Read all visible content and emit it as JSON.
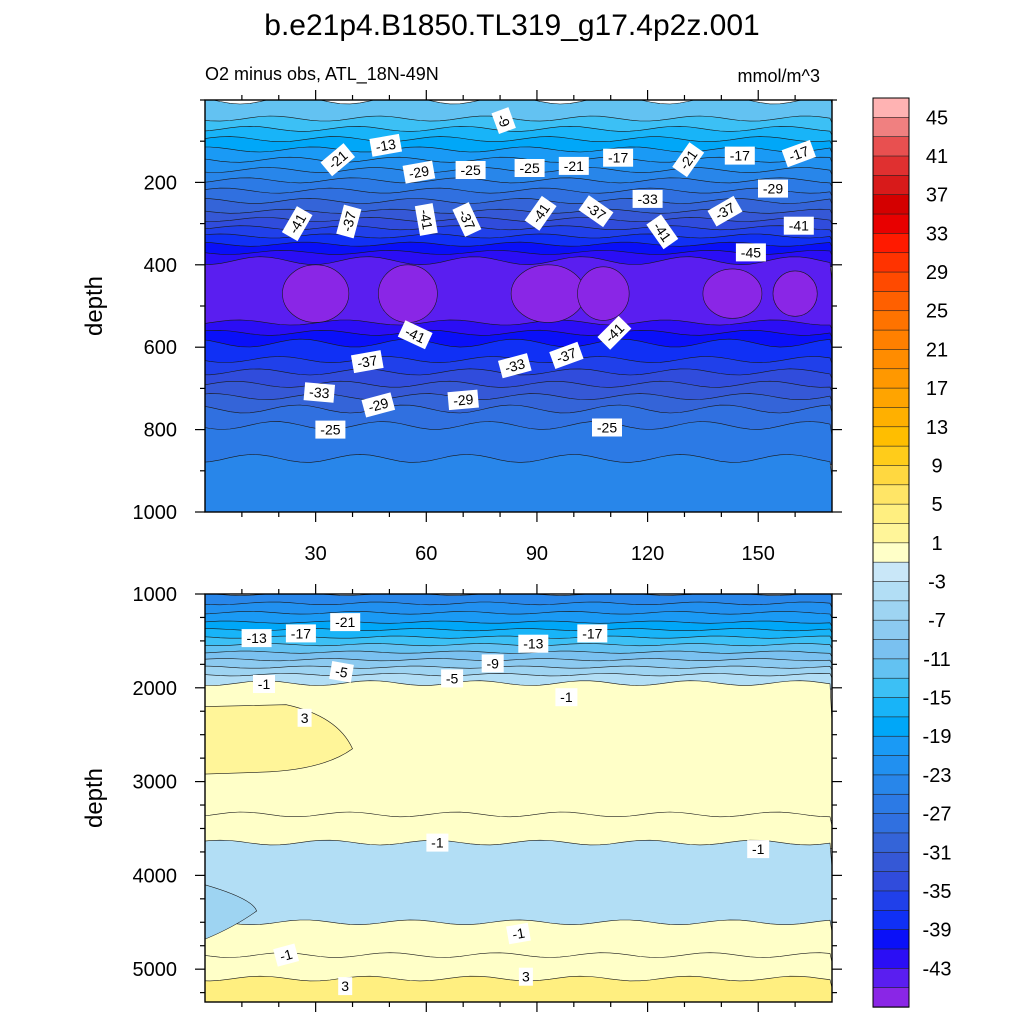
{
  "chart_data": {
    "type": "contour",
    "title": "b.e21p4.B1850.TL319_g17.4p2z.001",
    "subtitle_left": "O2 minus obs, ATL_18N-49N",
    "subtitle_right": "mmol/m^3",
    "panels": [
      {
        "name": "upper",
        "ylabel": "depth",
        "ylim": [
          0,
          1000
        ],
        "yticks": [
          200,
          400,
          600,
          800,
          1000
        ],
        "xlim": [
          0,
          170
        ],
        "xticks": [
          30,
          60,
          90,
          120,
          150
        ],
        "bands": [
          {
            "top": 0,
            "bottom": 45,
            "value": -11
          },
          {
            "top": 45,
            "bottom": 70,
            "value": -13
          },
          {
            "top": 70,
            "bottom": 95,
            "value": -15
          },
          {
            "top": 95,
            "bottom": 120,
            "value": -17
          },
          {
            "top": 120,
            "bottom": 145,
            "value": -19
          },
          {
            "top": 145,
            "bottom": 170,
            "value": -21
          },
          {
            "top": 170,
            "bottom": 195,
            "value": -23
          },
          {
            "top": 195,
            "bottom": 220,
            "value": -25
          },
          {
            "top": 220,
            "bottom": 245,
            "value": -27
          },
          {
            "top": 245,
            "bottom": 270,
            "value": -29
          },
          {
            "top": 270,
            "bottom": 290,
            "value": -31
          },
          {
            "top": 290,
            "bottom": 310,
            "value": -33
          },
          {
            "top": 310,
            "bottom": 330,
            "value": -35
          },
          {
            "top": 330,
            "bottom": 350,
            "value": -37
          },
          {
            "top": 350,
            "bottom": 370,
            "value": -39
          },
          {
            "top": 370,
            "bottom": 390,
            "value": -41
          },
          {
            "top": 390,
            "bottom": 540,
            "value": -43
          },
          {
            "top": 540,
            "bottom": 565,
            "value": -41
          },
          {
            "top": 565,
            "bottom": 590,
            "value": -39
          },
          {
            "top": 590,
            "bottom": 630,
            "value": -37
          },
          {
            "top": 630,
            "bottom": 660,
            "value": -35
          },
          {
            "top": 660,
            "bottom": 690,
            "value": -33
          },
          {
            "top": 690,
            "bottom": 720,
            "value": -31
          },
          {
            "top": 720,
            "bottom": 750,
            "value": -29
          },
          {
            "top": 750,
            "bottom": 790,
            "value": -27
          },
          {
            "top": 790,
            "bottom": 870,
            "value": -25
          },
          {
            "top": 870,
            "bottom": 1000,
            "value": -23
          }
        ],
        "blobs": [
          {
            "x": 30,
            "y": 470,
            "rx": 9,
            "ry": 70,
            "value": -45
          },
          {
            "x": 55,
            "y": 470,
            "rx": 8,
            "ry": 70,
            "value": -45
          },
          {
            "x": 93,
            "y": 470,
            "rx": 10,
            "ry": 70,
            "value": -45
          },
          {
            "x": 108,
            "y": 470,
            "rx": 7,
            "ry": 65,
            "value": -45
          },
          {
            "x": 143,
            "y": 470,
            "rx": 8,
            "ry": 60,
            "value": -45
          },
          {
            "x": 160,
            "y": 470,
            "rx": 6,
            "ry": 55,
            "value": -45
          }
        ],
        "labels": [
          {
            "text": "-9",
            "x": 81,
            "y": 50,
            "rot": 70
          },
          {
            "text": "-13",
            "x": 49,
            "y": 110,
            "rot": -10
          },
          {
            "text": "-21",
            "x": 36,
            "y": 145,
            "rot": -40
          },
          {
            "text": "-29",
            "x": 58,
            "y": 175,
            "rot": -10
          },
          {
            "text": "-25",
            "x": 72,
            "y": 170,
            "rot": 0
          },
          {
            "text": "-25",
            "x": 88,
            "y": 165,
            "rot": 0
          },
          {
            "text": "-21",
            "x": 100,
            "y": 160,
            "rot": 0
          },
          {
            "text": "-17",
            "x": 112,
            "y": 140,
            "rot": 0
          },
          {
            "text": "-21",
            "x": 131,
            "y": 145,
            "rot": -55
          },
          {
            "text": "-17",
            "x": 145,
            "y": 135,
            "rot": 0
          },
          {
            "text": "-17",
            "x": 161,
            "y": 130,
            "rot": -20
          },
          {
            "text": "-29",
            "x": 154,
            "y": 215,
            "rot": 0
          },
          {
            "text": "-33",
            "x": 120,
            "y": 240,
            "rot": 0
          },
          {
            "text": "-37",
            "x": 106,
            "y": 270,
            "rot": 35
          },
          {
            "text": "-41",
            "x": 91,
            "y": 275,
            "rot": -55
          },
          {
            "text": "-37",
            "x": 71,
            "y": 290,
            "rot": 65
          },
          {
            "text": "-41",
            "x": 60,
            "y": 290,
            "rot": 80
          },
          {
            "text": "-37",
            "x": 39,
            "y": 295,
            "rot": -75
          },
          {
            "text": "-41",
            "x": 25,
            "y": 300,
            "rot": -60
          },
          {
            "text": "-41",
            "x": 124,
            "y": 320,
            "rot": 55
          },
          {
            "text": "-37",
            "x": 141,
            "y": 270,
            "rot": -30
          },
          {
            "text": "-41",
            "x": 161,
            "y": 305,
            "rot": 0
          },
          {
            "text": "-45",
            "x": 148,
            "y": 370,
            "rot": 0
          },
          {
            "text": "-41",
            "x": 57,
            "y": 570,
            "rot": 25
          },
          {
            "text": "-41",
            "x": 111,
            "y": 565,
            "rot": -45
          },
          {
            "text": "-37",
            "x": 44,
            "y": 635,
            "rot": -10
          },
          {
            "text": "-37",
            "x": 98,
            "y": 620,
            "rot": -20
          },
          {
            "text": "-33",
            "x": 84,
            "y": 645,
            "rot": -15
          },
          {
            "text": "-33",
            "x": 31,
            "y": 710,
            "rot": 5
          },
          {
            "text": "-29",
            "x": 47,
            "y": 740,
            "rot": -15
          },
          {
            "text": "-29",
            "x": 70,
            "y": 728,
            "rot": -5
          },
          {
            "text": "-25",
            "x": 34,
            "y": 800,
            "rot": 0
          },
          {
            "text": "-25",
            "x": 109,
            "y": 795,
            "rot": 0
          }
        ]
      },
      {
        "name": "lower",
        "ylabel": "depth",
        "ylim": [
          1000,
          5350
        ],
        "yticks": [
          1000,
          2000,
          3000,
          4000,
          5000
        ],
        "xlim": [
          0,
          170
        ],
        "xticks": [
          30,
          60,
          90,
          120,
          150
        ],
        "bands": [
          {
            "top": 1000,
            "bottom": 1100,
            "value": -23
          },
          {
            "top": 1100,
            "bottom": 1200,
            "value": -21
          },
          {
            "top": 1200,
            "bottom": 1300,
            "value": -19
          },
          {
            "top": 1300,
            "bottom": 1380,
            "value": -17
          },
          {
            "top": 1380,
            "bottom": 1460,
            "value": -15
          },
          {
            "top": 1460,
            "bottom": 1540,
            "value": -13
          },
          {
            "top": 1540,
            "bottom": 1620,
            "value": -11
          },
          {
            "top": 1620,
            "bottom": 1700,
            "value": -9
          },
          {
            "top": 1700,
            "bottom": 1780,
            "value": -7
          },
          {
            "top": 1780,
            "bottom": 1860,
            "value": -5
          },
          {
            "top": 1860,
            "bottom": 1950,
            "value": -3
          },
          {
            "top": 1950,
            "bottom": 3350,
            "value": 1
          },
          {
            "top": 3350,
            "bottom": 3650,
            "value": 1
          },
          {
            "top": 3650,
            "bottom": 4500,
            "value": -3
          },
          {
            "top": 4500,
            "bottom": 4850,
            "value": 1
          },
          {
            "top": 4850,
            "bottom": 5100,
            "value": 1
          },
          {
            "top": 5100,
            "bottom": 5350,
            "value": 5
          }
        ],
        "labels": [
          {
            "text": "-21",
            "x": 38,
            "y": 1300,
            "rot": 0
          },
          {
            "text": "-13",
            "x": 14,
            "y": 1470,
            "rot": 0
          },
          {
            "text": "-17",
            "x": 26,
            "y": 1420,
            "rot": 0
          },
          {
            "text": "-13",
            "x": 89,
            "y": 1530,
            "rot": 0
          },
          {
            "text": "-17",
            "x": 105,
            "y": 1420,
            "rot": 0
          },
          {
            "text": "-9",
            "x": 78,
            "y": 1740,
            "rot": 0
          },
          {
            "text": "-5",
            "x": 37,
            "y": 1830,
            "rot": 10
          },
          {
            "text": "-5",
            "x": 67,
            "y": 1900,
            "rot": 0
          },
          {
            "text": "-1",
            "x": 16,
            "y": 1960,
            "rot": 0
          },
          {
            "text": "-1",
            "x": 98,
            "y": 2100,
            "rot": 0
          },
          {
            "text": "3",
            "x": 27,
            "y": 2320,
            "rot": 0
          },
          {
            "text": "-1",
            "x": 63,
            "y": 3650,
            "rot": 0
          },
          {
            "text": "-1",
            "x": 150,
            "y": 3720,
            "rot": 0
          },
          {
            "text": "-1",
            "x": 85,
            "y": 4620,
            "rot": -10
          },
          {
            "text": "-1",
            "x": 22,
            "y": 4850,
            "rot": -15
          },
          {
            "text": "3",
            "x": 87,
            "y": 5080,
            "rot": 0
          },
          {
            "text": "3",
            "x": 38,
            "y": 5180,
            "rot": 0
          }
        ]
      }
    ],
    "colorbar": {
      "levels": [
        45,
        41,
        37,
        33,
        29,
        25,
        21,
        17,
        13,
        9,
        5,
        1,
        -3,
        -7,
        -11,
        -15,
        -19,
        -23,
        -27,
        -31,
        -35,
        -39,
        -43
      ],
      "segment_values": [
        47,
        45,
        43,
        41,
        39,
        37,
        35,
        33,
        31,
        29,
        27,
        25,
        23,
        21,
        19,
        17,
        15,
        13,
        11,
        9,
        7,
        5,
        3,
        1,
        -1,
        -3,
        -5,
        -7,
        -9,
        -11,
        -13,
        -15,
        -17,
        -19,
        -21,
        -23,
        -25,
        -27,
        -29,
        -31,
        -33,
        -35,
        -37,
        -39,
        -41,
        -43,
        -45
      ],
      "colors": {
        "47": "#ffb3b3",
        "45": "#f08080",
        "43": "#e85050",
        "41": "#e03030",
        "39": "#d81a1a",
        "37": "#d40000",
        "35": "#e80000",
        "33": "#ff1a00",
        "31": "#ff3300",
        "29": "#ff4a00",
        "27": "#ff6000",
        "25": "#ff7300",
        "23": "#ff8000",
        "21": "#ff8c00",
        "19": "#ff9800",
        "17": "#ffa400",
        "15": "#ffb000",
        "13": "#ffbe00",
        "11": "#ffcc1a",
        "9": "#ffd840",
        "7": "#ffe566",
        "5": "#ffef80",
        "3": "#fff599",
        "1": "#ffffc8",
        "-1": "#c9e7f8",
        "-3": "#b2def5",
        "-5": "#9ed4f2",
        "-7": "#8ccaf0",
        "-9": "#7ac1f0",
        "-11": "#63c2f2",
        "-13": "#3cc0f5",
        "-15": "#18b4f8",
        "-17": "#00a7f8",
        "-19": "#1a9af5",
        "-21": "#2190f0",
        "-23": "#2886ea",
        "-25": "#2c7ae5",
        "-27": "#3070e0",
        "-29": "#3464d8",
        "-31": "#3558d6",
        "-33": "#304cdc",
        "-35": "#2040ea",
        "-37": "#1030f5",
        "-39": "#0a10f8",
        "-41": "#2b0ef5",
        "-43": "#5a1ef0",
        "-45": "#8a26e6"
      }
    }
  }
}
